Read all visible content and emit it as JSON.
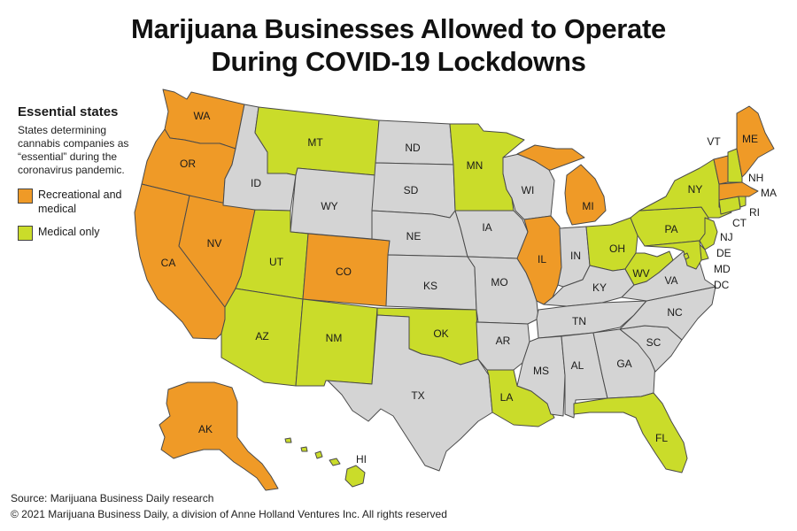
{
  "title": {
    "line1": "Marijuana Businesses Allowed to Operate",
    "line2": "During COVID-19 Lockdowns"
  },
  "legend": {
    "heading": "Essential states",
    "description": "States determining cannabis companies as “essential” during the coronavirus pandemic.",
    "items": [
      {
        "label": "Recreational and medical",
        "color": "#ef9a27"
      },
      {
        "label": "Medical only",
        "color": "#cadc2a"
      }
    ]
  },
  "colors": {
    "recreational_and_medical": "#ef9a27",
    "medical_only": "#cadc2a",
    "not_essential": "#d4d4d4",
    "border": "#4a4a4a"
  },
  "states": {
    "WA": "recreational_and_medical",
    "OR": "recreational_and_medical",
    "CA": "recreational_and_medical",
    "NV": "recreational_and_medical",
    "CO": "recreational_and_medical",
    "MI": "recreational_and_medical",
    "IL": "recreational_and_medical",
    "AK": "recreational_and_medical",
    "MA": "recreational_and_medical",
    "ME": "recreational_and_medical",
    "VT": "recreational_and_medical",
    "MT": "medical_only",
    "UT": "medical_only",
    "AZ": "medical_only",
    "NM": "medical_only",
    "MN": "medical_only",
    "OK": "medical_only",
    "LA": "medical_only",
    "OH": "medical_only",
    "PA": "medical_only",
    "NY": "medical_only",
    "FL": "medical_only",
    "HI": "medical_only",
    "NH": "medical_only",
    "CT": "medical_only",
    "RI": "medical_only",
    "NJ": "medical_only",
    "DE": "medical_only",
    "MD": "medical_only",
    "DC": "medical_only",
    "WV": "medical_only",
    "ID": "not_essential",
    "WY": "not_essential",
    "ND": "not_essential",
    "SD": "not_essential",
    "NE": "not_essential",
    "KS": "not_essential",
    "TX": "not_essential",
    "IA": "not_essential",
    "MO": "not_essential",
    "AR": "not_essential",
    "WI": "not_essential",
    "IN": "not_essential",
    "KY": "not_essential",
    "TN": "not_essential",
    "MS": "not_essential",
    "AL": "not_essential",
    "GA": "not_essential",
    "SC": "not_essential",
    "NC": "not_essential",
    "VA": "not_essential"
  },
  "footer": {
    "source": "Source: Marijuana Business Daily research",
    "copyright": "© 2021 Marijuana Business Daily, a division of Anne Holland Ventures Inc. All rights reserved"
  }
}
